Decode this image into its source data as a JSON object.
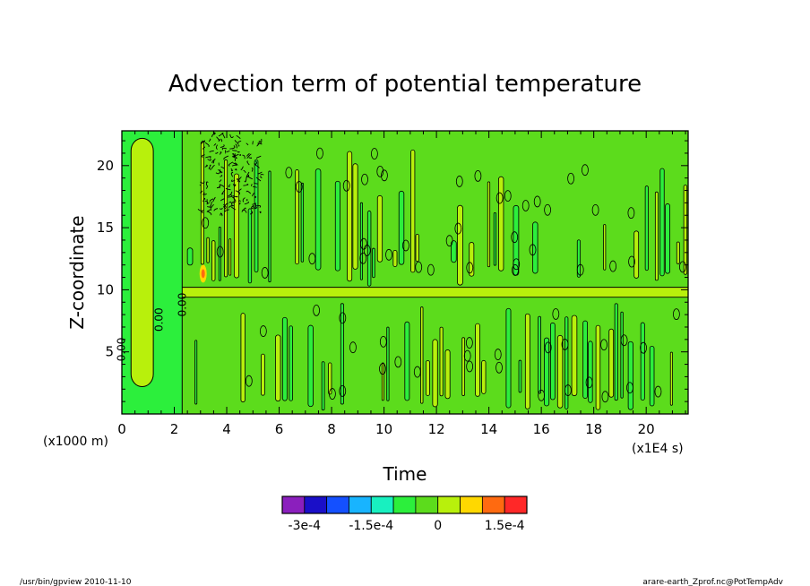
{
  "chart_data": {
    "type": "heatmap",
    "title": "Advection term of potential temperature",
    "xlabel": "Time",
    "ylabel": "Z-coordinate",
    "x_unit": "(x1E4 s)",
    "y_unit": "(x1000 m)",
    "xlim": [
      0,
      21.6
    ],
    "ylim": [
      0,
      22.8
    ],
    "x_ticks": [
      0,
      2,
      4,
      6,
      8,
      10,
      12,
      14,
      16,
      18,
      20
    ],
    "y_ticks": [
      5,
      10,
      15,
      20
    ],
    "contour_labels": [
      "0.00",
      "0.00",
      "0.00"
    ],
    "colorbar": {
      "levels": [
        -0.00035,
        -0.0003,
        -0.00025,
        -0.0002,
        -0.00015,
        -0.0001,
        -5e-05,
        0,
        5e-05,
        0.0001,
        0.00015,
        0.0002
      ],
      "colors": [
        "#8b1fbd",
        "#1a0fc8",
        "#1450ff",
        "#18b4ff",
        "#18f0c0",
        "#2cef3c",
        "#5cdc1c",
        "#b8f00c",
        "#ffd800",
        "#ff6a10",
        "#ff2828"
      ],
      "tick_labels": [
        "-3e-4",
        "-1.5e-4",
        "0",
        "1.5e-4"
      ],
      "tick_values": [
        -0.0003,
        -0.00015,
        0,
        0.00015
      ]
    }
  },
  "footer": {
    "program": "/usr/bin/gpview   2010-11-10",
    "source": "arare-earth_Zprof.nc@PotTempAdv"
  }
}
